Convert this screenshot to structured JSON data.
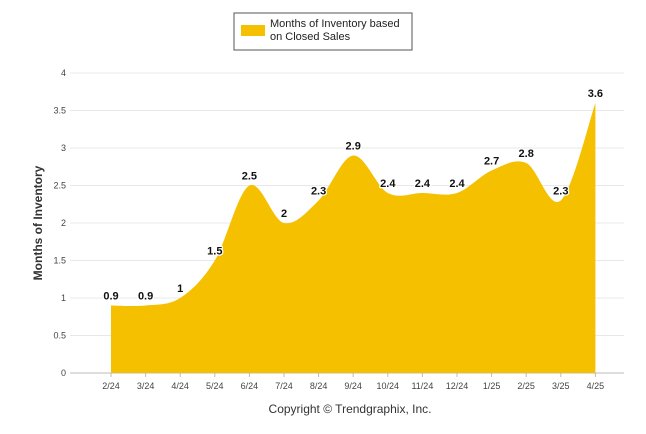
{
  "chart_data": {
    "type": "area",
    "title": "",
    "xlabel": "",
    "ylabel": "Months of Inventory",
    "ylim": [
      0,
      4
    ],
    "yticks": [
      "0",
      "0.5",
      "1",
      "1.5",
      "2",
      "2.5",
      "3",
      "3.5",
      "4"
    ],
    "categories": [
      "2/24",
      "3/24",
      "4/24",
      "5/24",
      "6/24",
      "7/24",
      "8/24",
      "9/24",
      "10/24",
      "11/24",
      "12/24",
      "1/25",
      "2/25",
      "3/25",
      "4/25"
    ],
    "series": [
      {
        "name": "Months of Inventory based on Closed Sales",
        "values": [
          0.9,
          0.9,
          1,
          1.5,
          2.5,
          2,
          2.3,
          2.9,
          2.4,
          2.4,
          2.4,
          2.7,
          2.8,
          2.3,
          3.6
        ],
        "labels": [
          "0.9",
          "0.9",
          "1",
          "1.5",
          "2.5",
          "2",
          "2.3",
          "2.9",
          "2.4",
          "2.4",
          "2.4",
          "2.7",
          "2.8",
          "2.3",
          "3.6"
        ],
        "color": "#F5C000"
      }
    ],
    "legend": {
      "line1": "Months of Inventory based",
      "line2": "on Closed Sales",
      "position": "top-center"
    },
    "grid": true,
    "gridColor": "#e8e8e8"
  },
  "footer": {
    "copyright": "Copyright © Trendgraphix, Inc."
  }
}
